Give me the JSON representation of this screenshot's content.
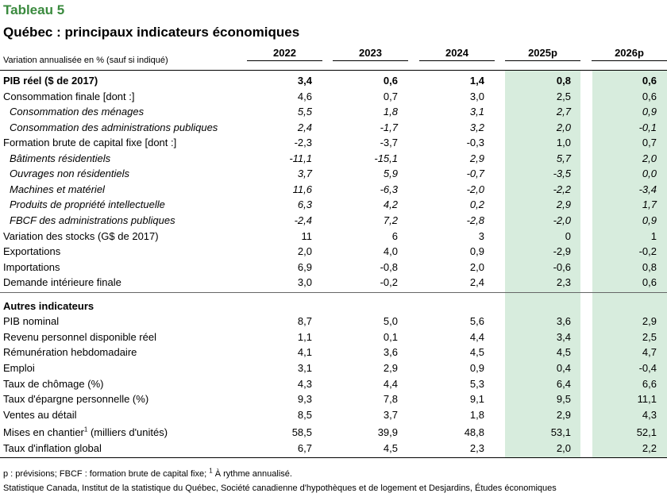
{
  "title": "Tableau 5",
  "subtitle": "Québec : principaux indicateurs économiques",
  "unit_label": "Variation annualisée en % (sauf si indiqué)",
  "shade_color": "#d7ecdd",
  "title_color": "#3a8a3e",
  "columns": [
    "2022",
    "2023",
    "2024",
    "2025p",
    "2026p"
  ],
  "rows": [
    {
      "label": "PIB réel ($ de 2017)",
      "values": [
        "3,4",
        "0,6",
        "1,4",
        "0,8",
        "0,6"
      ],
      "style": "bold"
    },
    {
      "label": "Consommation finale [dont :]",
      "values": [
        "4,6",
        "0,7",
        "3,0",
        "2,5",
        "0,6"
      ],
      "style": "normal"
    },
    {
      "label": "Consommation des ménages",
      "values": [
        "5,5",
        "1,8",
        "3,1",
        "2,7",
        "0,9"
      ],
      "style": "italic-indent"
    },
    {
      "label": "Consommation des administrations publiques",
      "values": [
        "2,4",
        "-1,7",
        "3,2",
        "2,0",
        "-0,1"
      ],
      "style": "italic-indent"
    },
    {
      "label": "Formation brute de capital fixe [dont :]",
      "values": [
        "-2,3",
        "-3,7",
        "-0,3",
        "1,0",
        "0,7"
      ],
      "style": "normal"
    },
    {
      "label": "Bâtiments résidentiels",
      "values": [
        "-11,1",
        "-15,1",
        "2,9",
        "5,7",
        "2,0"
      ],
      "style": "italic-indent"
    },
    {
      "label": "Ouvrages non résidentiels",
      "values": [
        "3,7",
        "5,9",
        "-0,7",
        "-3,5",
        "0,0"
      ],
      "style": "italic-indent"
    },
    {
      "label": "Machines et matériel",
      "values": [
        "11,6",
        "-6,3",
        "-2,0",
        "-2,2",
        "-3,4"
      ],
      "style": "italic-indent"
    },
    {
      "label": "Produits de propriété intellectuelle",
      "values": [
        "6,3",
        "4,2",
        "0,2",
        "2,9",
        "1,7"
      ],
      "style": "italic-indent"
    },
    {
      "label": "FBCF des administrations publiques",
      "values": [
        "-2,4",
        "7,2",
        "-2,8",
        "-2,0",
        "0,9"
      ],
      "style": "italic-indent"
    },
    {
      "label": "Variation des stocks (G$ de 2017)",
      "values": [
        "11",
        "6",
        "3",
        "0",
        "1"
      ],
      "style": "normal"
    },
    {
      "label": "Exportations",
      "values": [
        "2,0",
        "4,0",
        "0,9",
        "-2,9",
        "-0,2"
      ],
      "style": "normal"
    },
    {
      "label": "Importations",
      "values": [
        "6,9",
        "-0,8",
        "2,0",
        "-0,6",
        "0,8"
      ],
      "style": "normal"
    },
    {
      "label": "Demande intérieure finale",
      "values": [
        "3,0",
        "-0,2",
        "2,4",
        "2,3",
        "0,6"
      ],
      "style": "normal"
    }
  ],
  "section2_title": "Autres indicateurs",
  "rows2": [
    {
      "label": "PIB nominal",
      "values": [
        "8,7",
        "5,0",
        "5,6",
        "3,6",
        "2,9"
      ]
    },
    {
      "label": "Revenu personnel disponible réel",
      "values": [
        "1,1",
        "0,1",
        "4,4",
        "3,4",
        "2,5"
      ]
    },
    {
      "label": "Rémunération hebdomadaire",
      "values": [
        "4,1",
        "3,6",
        "4,5",
        "4,5",
        "4,7"
      ]
    },
    {
      "label": "Emploi",
      "values": [
        "3,1",
        "2,9",
        "0,9",
        "0,4",
        "-0,4"
      ]
    },
    {
      "label": "Taux de chômage (%)",
      "values": [
        "4,3",
        "4,4",
        "5,3",
        "6,4",
        "6,6"
      ]
    },
    {
      "label": "Taux d'épargne personnelle (%)",
      "values": [
        "9,3",
        "7,8",
        "9,1",
        "9,5",
        "11,1"
      ]
    },
    {
      "label": "Ventes au détail",
      "values": [
        "8,5",
        "3,7",
        "1,8",
        "2,9",
        "4,3"
      ]
    },
    {
      "label": "Mises en chantier",
      "sup": "1",
      "label_suffix": " (milliers d'unités)",
      "values": [
        "58,5",
        "39,9",
        "48,8",
        "53,1",
        "52,1"
      ]
    },
    {
      "label": "Taux d'inflation global",
      "values": [
        "6,7",
        "4,5",
        "2,3",
        "2,0",
        "2,2"
      ]
    }
  ],
  "notes_prefix": "p : prévisions; FBCF : formation brute de capital fixe; ",
  "notes_sup": "1",
  "notes_suffix": " À rythme annualisé.",
  "source": "Statistique Canada, Institut de la statistique du Québec, Société canadienne d'hypothèques et de logement et Desjardins, Études économiques"
}
